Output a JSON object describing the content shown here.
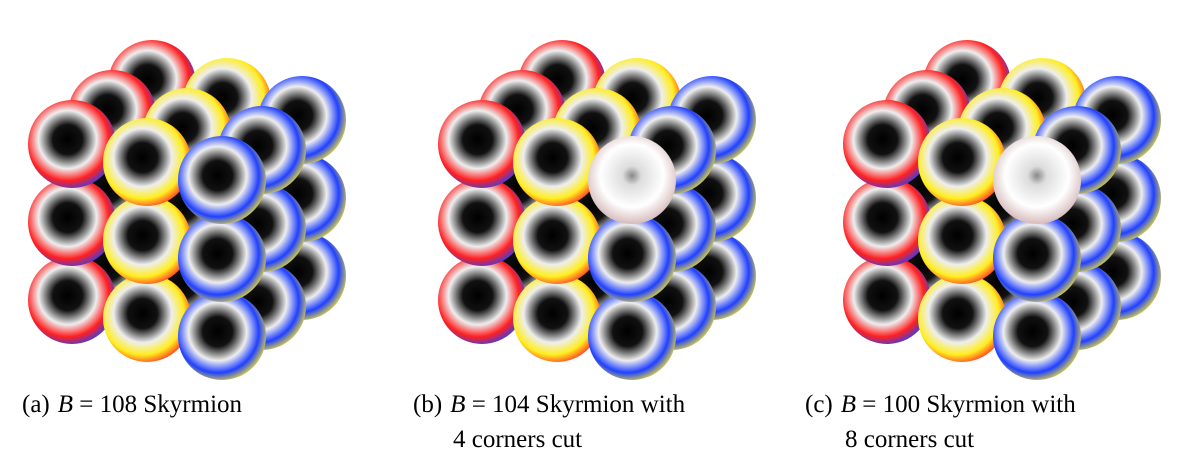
{
  "panels": [
    {
      "label": "(a)",
      "symbol": "B",
      "equation": "= 108",
      "text": "Skyrmion",
      "text2": ""
    },
    {
      "label": "(b)",
      "symbol": "B",
      "equation": "= 104",
      "text": "Skyrmion with",
      "text2": "4 corners cut"
    },
    {
      "label": "(c)",
      "symbol": "B",
      "equation": "= 100",
      "text": "Skyrmion with",
      "text2": "8 corners cut"
    }
  ]
}
